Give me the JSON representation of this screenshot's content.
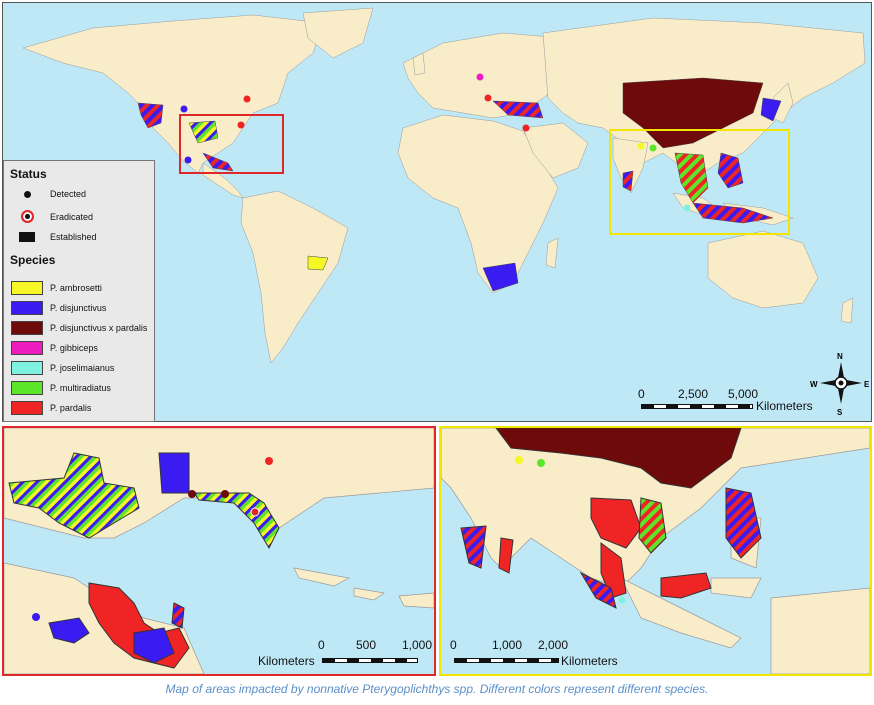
{
  "legend": {
    "status_title": "Status",
    "status": [
      "Detected",
      "Eradicated",
      "Established"
    ],
    "species_title": "Species",
    "species": [
      {
        "label": "P. ambrosetti",
        "color": "#f7f726"
      },
      {
        "label": "P. disjunctivus",
        "color": "#3a1cf2"
      },
      {
        "label": "P. disjunctivus x pardalis",
        "color": "#6e0a0a"
      },
      {
        "label": "P. gibbiceps",
        "color": "#ec1cbf"
      },
      {
        "label": "P. joselimaianus",
        "color": "#7ef2df"
      },
      {
        "label": "P. multiradiatus",
        "color": "#5ce62a"
      },
      {
        "label": "P. pardalis",
        "color": "#ef2525"
      }
    ]
  },
  "main_scale": {
    "ticks": [
      "0",
      "2,500",
      "5,000"
    ],
    "unit": "Kilometers"
  },
  "americas_scale": {
    "ticks": [
      "0",
      "500",
      "1,000"
    ],
    "unit": "Kilometers"
  },
  "asia_scale": {
    "ticks": [
      "0",
      "1,000",
      "2,000"
    ],
    "unit": "Kilometers"
  },
  "compass": {
    "n": "N",
    "s": "S",
    "e": "E",
    "w": "W"
  },
  "caption": "Map of areas impacted by nonnative Pterygoplichthys spp. Different colors represent different species.",
  "colors": {
    "ocean": "#bfe8f7",
    "land": "#f8ecc9",
    "inset_red": "#e02828",
    "inset_yellow": "#f2e600"
  }
}
